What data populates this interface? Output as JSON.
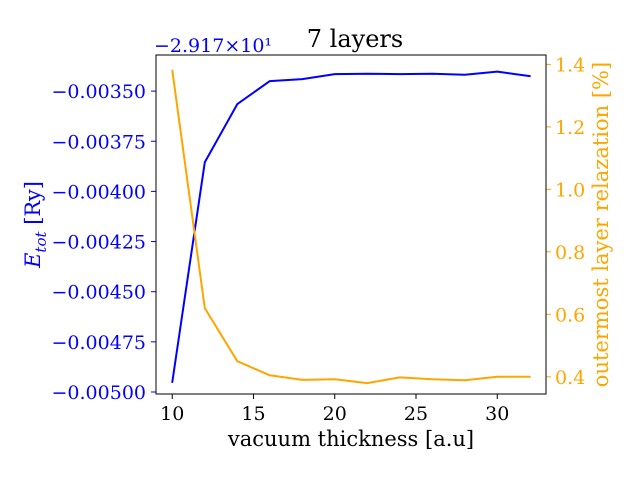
{
  "chart_data": {
    "type": "line",
    "title": "7 layers",
    "xlabel": "vacuum thickness [a.u]",
    "ylabel_left": "E_tot [Ry]",
    "ylabel_right": "outermost layer relazation [%]",
    "y_left_offset_label": "−2.917×10¹",
    "x": [
      10,
      12,
      14,
      16,
      18,
      20,
      22,
      24,
      26,
      28,
      30,
      32
    ],
    "xlim": [
      9.0,
      33.0
    ],
    "x_ticks": [
      10,
      15,
      20,
      25,
      30
    ],
    "x_tick_labels": [
      "10",
      "15",
      "20",
      "25",
      "30"
    ],
    "ylim_left": [
      -0.00501,
      -0.00332
    ],
    "ylim_right": [
      0.345,
      1.43
    ],
    "y_left_ticks": [
      -0.0035,
      -0.00375,
      -0.004,
      -0.00425,
      -0.0045,
      -0.00475,
      -0.005
    ],
    "y_left_tick_labels": [
      "−0.00350",
      "−0.00375",
      "−0.00400",
      "−0.00425",
      "−0.00450",
      "−0.00475",
      "−0.00500"
    ],
    "y_right_ticks": [
      0.4,
      0.6,
      0.8,
      1.0,
      1.2,
      1.4
    ],
    "y_right_tick_labels": [
      "0.4",
      "0.6",
      "0.8",
      "1.0",
      "1.2",
      "1.4"
    ],
    "grid": false,
    "series": [
      {
        "name": "",
        "axis": "left",
        "color": "#0000ff",
        "values": [
          -0.00495,
          -0.003855,
          -0.003565,
          -0.00345,
          -0.00344,
          -0.003415,
          -0.003413,
          -0.003415,
          -0.003413,
          -0.003418,
          -0.003403,
          -0.003425
        ]
      },
      {
        "name": "",
        "axis": "right",
        "color": "#ffa500",
        "values": [
          1.38,
          0.62,
          0.45,
          0.405,
          0.39,
          0.392,
          0.38,
          0.398,
          0.392,
          0.389,
          0.4,
          0.4
        ]
      }
    ]
  }
}
